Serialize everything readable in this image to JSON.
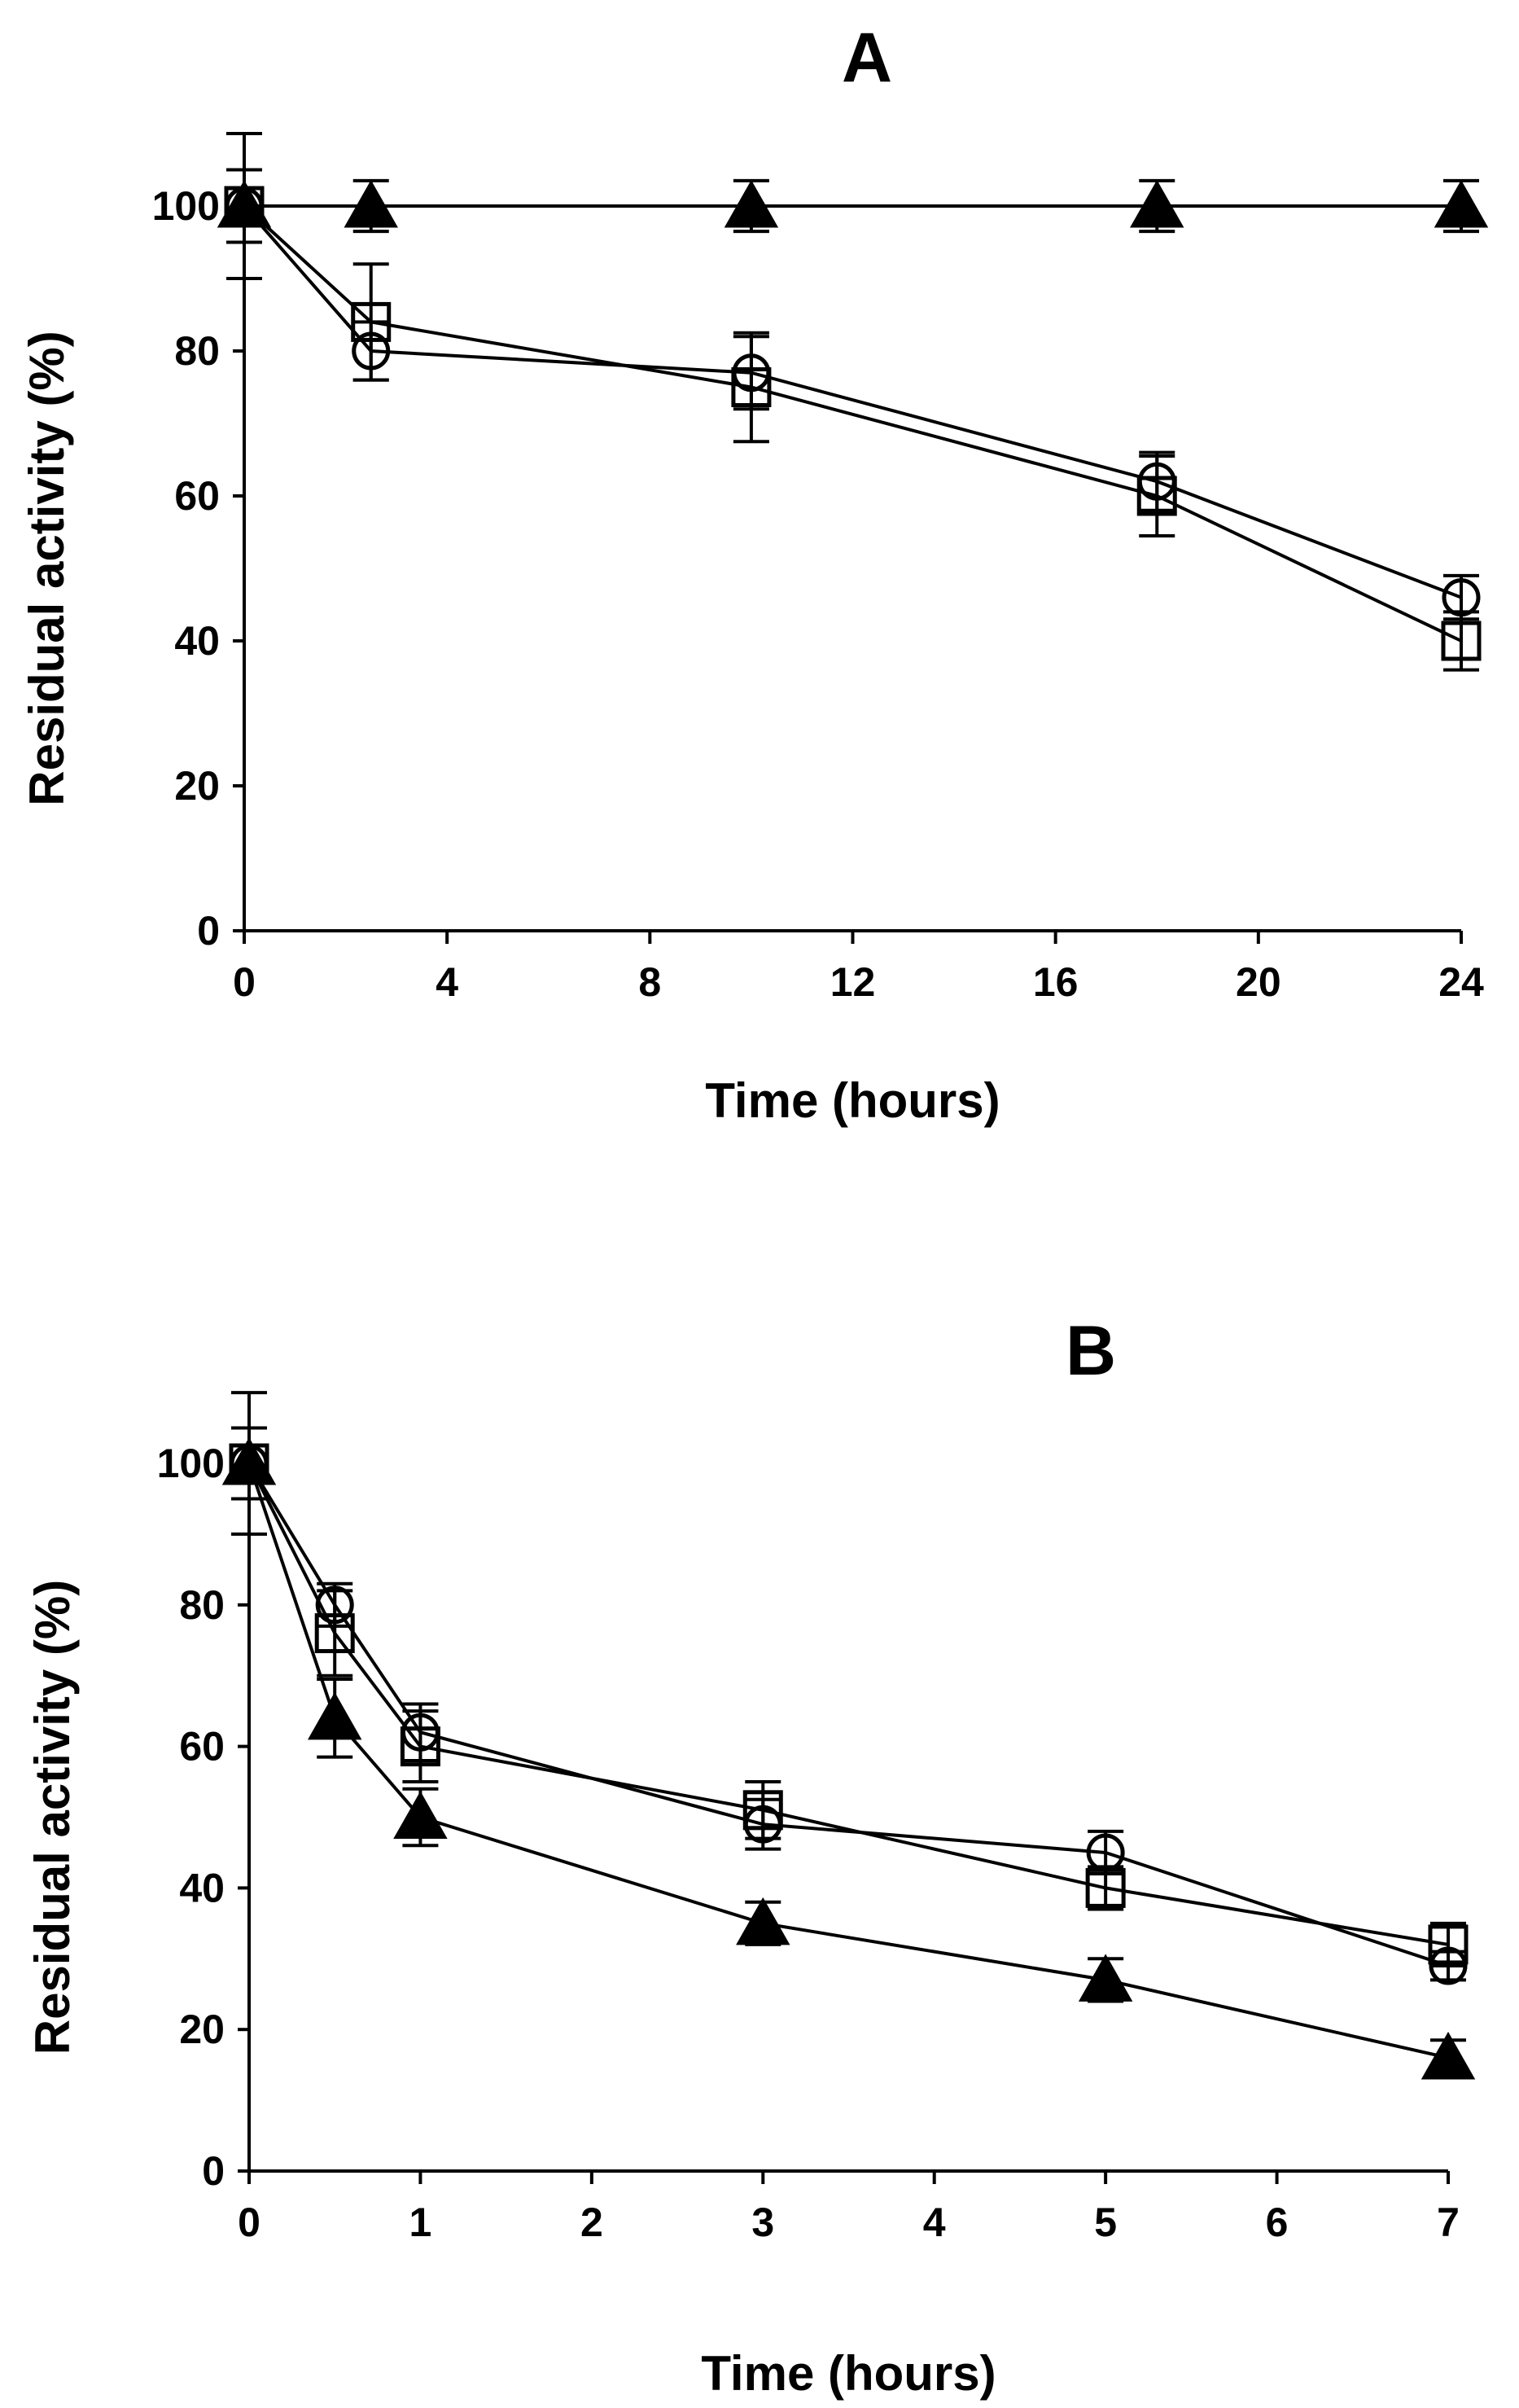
{
  "figure": {
    "panel_count": 2
  },
  "chart_data": [
    {
      "type": "line",
      "title": "A",
      "xlabel": "Time (hours)",
      "ylabel": "Residual activity (%)",
      "xlim": [
        0,
        24
      ],
      "ylim": [
        0,
        100
      ],
      "xticks": [
        0,
        4,
        8,
        12,
        16,
        20,
        24
      ],
      "yticks": [
        0,
        20,
        40,
        60,
        80,
        100
      ],
      "grid": false,
      "series": [
        {
          "name": "filled triangle",
          "marker": "triangle-filled",
          "x": [
            0,
            2.5,
            10,
            18,
            24
          ],
          "y": [
            100,
            100,
            100,
            100,
            100
          ],
          "err": [
            0,
            3.5,
            3.5,
            3.5,
            3.5
          ]
        },
        {
          "name": "open circle",
          "marker": "circle-open",
          "x": [
            0,
            2.5,
            10,
            18,
            24
          ],
          "y": [
            100,
            80,
            77,
            62,
            46
          ],
          "err": [
            10,
            4,
            5,
            4,
            3
          ]
        },
        {
          "name": "open square",
          "marker": "square-open",
          "x": [
            0,
            2.5,
            10,
            18,
            24
          ],
          "y": [
            100,
            84,
            75,
            60,
            40
          ],
          "err": [
            5,
            8,
            7.5,
            5.5,
            4
          ]
        }
      ]
    },
    {
      "type": "line",
      "title": "B",
      "xlabel": "Time (hours)",
      "ylabel": "Residual activity (%)",
      "xlim": [
        0,
        7
      ],
      "ylim": [
        0,
        100
      ],
      "xticks": [
        0,
        1,
        2,
        3,
        4,
        5,
        6,
        7
      ],
      "yticks": [
        0,
        20,
        40,
        60,
        80,
        100
      ],
      "grid": false,
      "series": [
        {
          "name": "filled triangle",
          "marker": "triangle-filled",
          "x": [
            0,
            0.5,
            1,
            3,
            5,
            7
          ],
          "y": [
            100,
            64,
            50,
            35,
            27,
            16
          ],
          "err": [
            0,
            5.5,
            4,
            3,
            3,
            2.5
          ]
        },
        {
          "name": "open circle",
          "marker": "circle-open",
          "x": [
            0,
            0.5,
            1,
            3,
            5,
            7
          ],
          "y": [
            100,
            80,
            62,
            49,
            45,
            29
          ],
          "err": [
            10,
            3,
            4,
            3.5,
            3,
            2
          ]
        },
        {
          "name": "open square",
          "marker": "square-open",
          "x": [
            0,
            0.5,
            1,
            3,
            5,
            7
          ],
          "y": [
            100,
            76,
            60,
            51,
            40,
            32
          ],
          "err": [
            5,
            6,
            5,
            4,
            3,
            3
          ]
        }
      ]
    }
  ]
}
